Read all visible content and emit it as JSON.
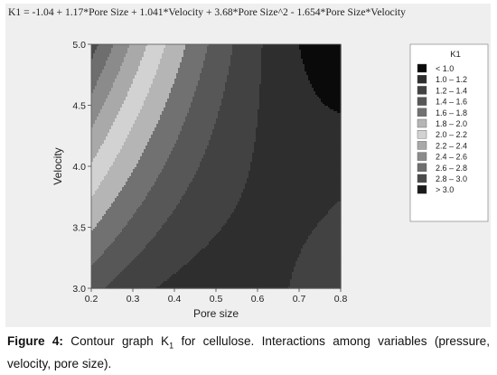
{
  "chart_data": {
    "type": "heatmap",
    "title": "K1 = -1.04 + 1.17*Pore Size + 1.041*Velocity + 3.68*Pore Size^2 - 1.654*Pore Size*Velocity",
    "xlabel": "Pore size",
    "ylabel": "Velocity",
    "xlim": [
      0.2,
      0.8
    ],
    "ylim": [
      3.0,
      5.0
    ],
    "x_ticks": [
      "0.2",
      "0.3",
      "0.4",
      "0.5",
      "0.6",
      "0.7",
      "0.8"
    ],
    "y_ticks": [
      "3.0",
      "3.5",
      "4.0",
      "4.5",
      "5.0"
    ],
    "grid": false,
    "legend_position": "right",
    "legend": {
      "title": "K1",
      "entries": [
        {
          "label": "< 1.0",
          "color": "#0a0a0a"
        },
        {
          "label": "1.0 – 1.2",
          "color": "#2e2e2e"
        },
        {
          "label": "1.2 – 1.4",
          "color": "#424242"
        },
        {
          "label": "1.4 – 1.6",
          "color": "#575757"
        },
        {
          "label": "1.6 – 1.8",
          "color": "#717171"
        },
        {
          "label": "1.8 – 2.0",
          "color": "#b5b5b5"
        },
        {
          "label": "2.0 – 2.2",
          "color": "#d2d2d2"
        },
        {
          "label": "2.2 – 2.4",
          "color": "#a9a9a9"
        },
        {
          "label": "2.4 – 2.6",
          "color": "#8b8b8b"
        },
        {
          "label": "2.6 – 2.8",
          "color": "#6e6e6e"
        },
        {
          "label": "2.8 – 3.0",
          "color": "#4b4b4b"
        },
        {
          "label": "> 3.0",
          "color": "#1a1a1a"
        }
      ]
    },
    "equation_coefficients": {
      "intercept": -1.04,
      "pore_size": 1.17,
      "velocity": 1.041,
      "pore_size_sq": 3.68,
      "pore_size_x_velocity": -1.654
    }
  },
  "caption": {
    "label": "Figure 4:",
    "text_before_sub": "Contour graph K",
    "sub": "1",
    "text_after_sub": " for cellulose. Interactions among variables (pressure, velocity, pore size)."
  }
}
